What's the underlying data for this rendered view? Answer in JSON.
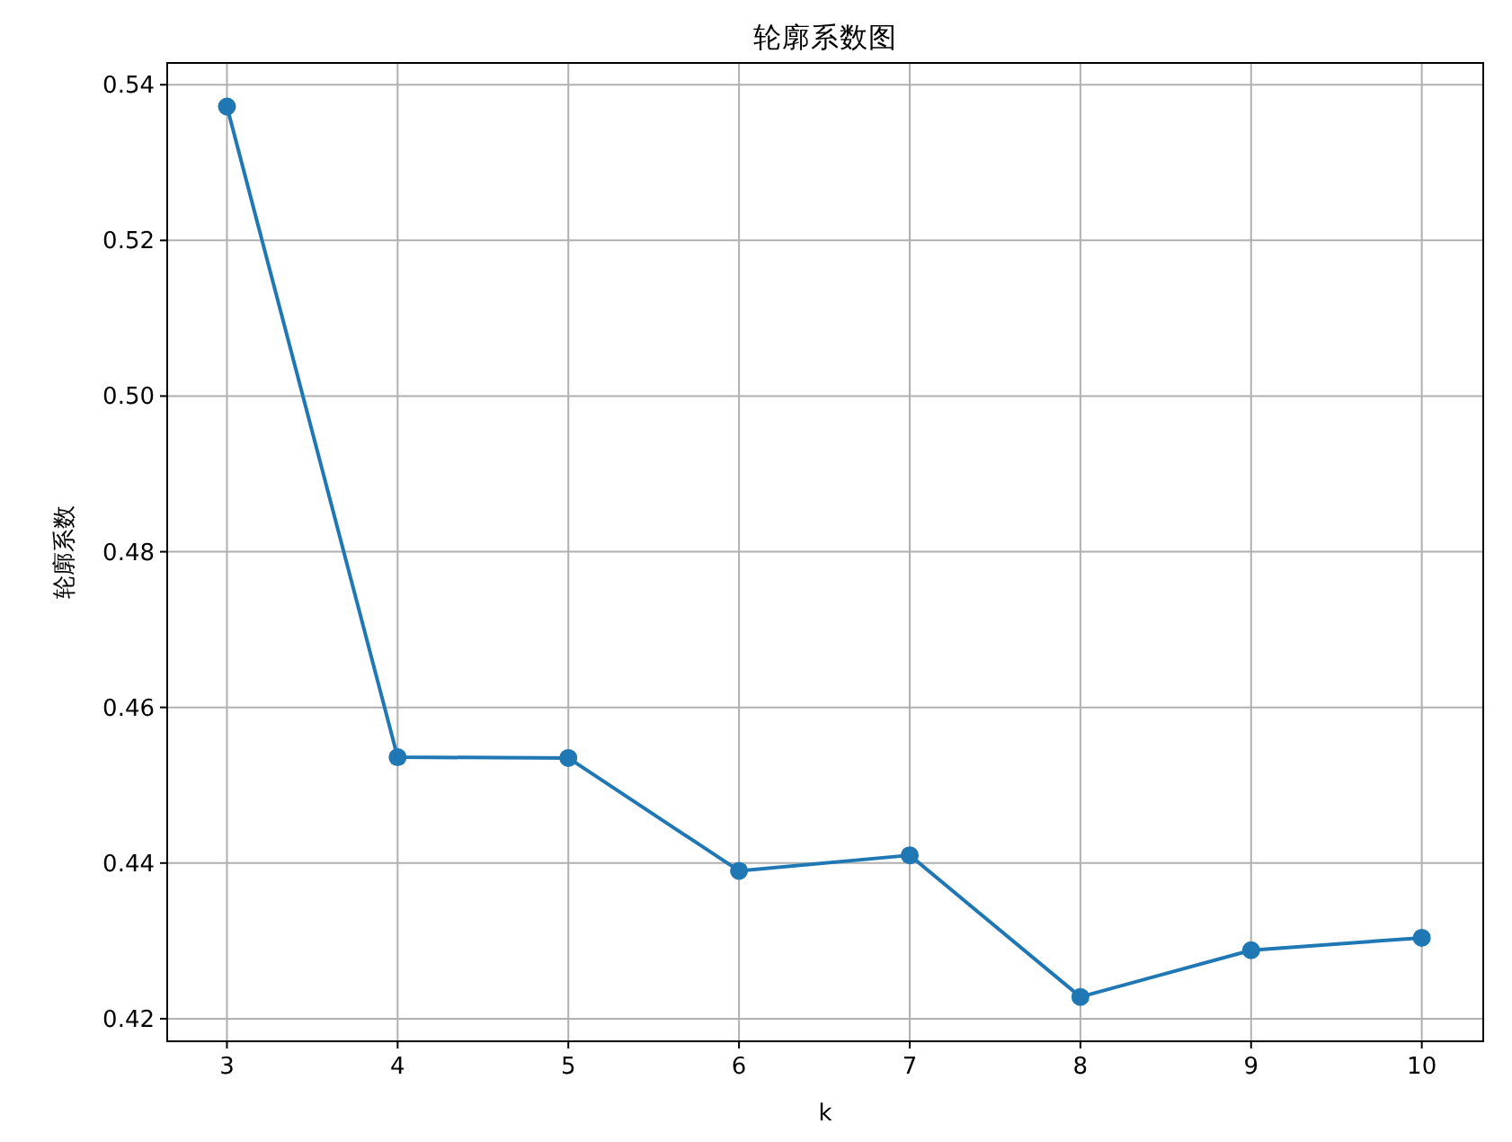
{
  "chart_data": {
    "type": "line",
    "title": "轮廓系数图",
    "xlabel": "k",
    "ylabel": "轮廓系数",
    "x": [
      3,
      4,
      5,
      6,
      7,
      8,
      9,
      10
    ],
    "series": [
      {
        "color": "#1f77b4",
        "values": [
          0.5372,
          0.4536,
          0.4535,
          0.439,
          0.441,
          0.4228,
          0.4288,
          0.4304
        ]
      }
    ],
    "xlim": [
      2.65,
      10.36
    ],
    "ylim": [
      0.4171,
      0.5428
    ],
    "xticks": [
      3,
      4,
      5,
      6,
      7,
      8,
      9,
      10
    ],
    "yticks": [
      {
        "value": 0.42,
        "label": "0.42"
      },
      {
        "value": 0.44,
        "label": "0.44"
      },
      {
        "value": 0.46,
        "label": "0.46"
      },
      {
        "value": 0.48,
        "label": "0.48"
      },
      {
        "value": 0.5,
        "label": "0.50"
      },
      {
        "value": 0.52,
        "label": "0.52"
      },
      {
        "value": 0.54,
        "label": "0.54"
      }
    ],
    "grid": true,
    "marker": "circle",
    "line_style": "solid"
  }
}
